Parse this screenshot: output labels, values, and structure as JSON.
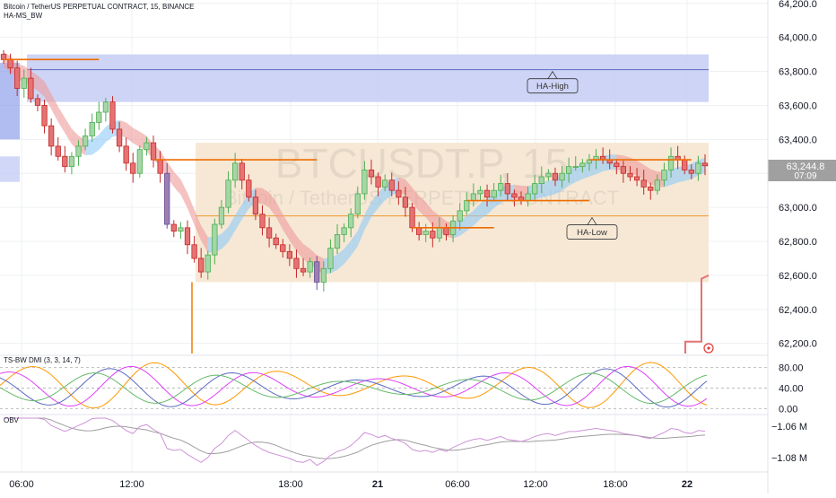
{
  "header": {
    "title": "Bitcoin / TetherUS PERPETUAL CONTRACT, 15, BINANCE",
    "indicator": "HA-MS_BW"
  },
  "watermark": {
    "symbol": "BTCUSDT.P, 15",
    "name": "Bitcoin / TetherUS PERPETUAL CONTRACT"
  },
  "colors": {
    "up_candle": "#a5d6a7",
    "down_candle": "#e57373",
    "purple_candle": "#9c7fb3",
    "orange_line": "#ef6c00",
    "high_zone": "#c5cdf5",
    "low_zone": "#f5e6d0",
    "grid": "#eef0f3",
    "price_tag": "#a0a0a0"
  },
  "chart_data": [
    {
      "type": "candlestick",
      "name": "main",
      "price_axis": [
        "64,200.0",
        "64,000.0",
        "63,800.0",
        "63,600.0",
        "63,400.0",
        "63,200.0",
        "63,000.0",
        "62,800.0",
        "62,600.0",
        "62,400.0",
        "62,200.0"
      ],
      "ylim": [
        62140,
        64220
      ],
      "time_axis": [
        "06:00",
        "12:00",
        "18:00",
        "21",
        "06:00",
        "12:00",
        "18:00",
        "22"
      ],
      "current_price": "63,244.8",
      "countdown": "07:09",
      "zones": [
        {
          "label": "HA-High",
          "top": 63900,
          "bottom": 63620,
          "level": 63810
        },
        {
          "label": "HA-Low",
          "top": 63380,
          "bottom": 62560,
          "level": 62950
        }
      ],
      "close": [
        63870,
        63820,
        63700,
        63760,
        63640,
        63600,
        63480,
        63360,
        63300,
        63240,
        63300,
        63360,
        63420,
        63500,
        63560,
        63620,
        63460,
        63360,
        63260,
        63200,
        63340,
        63380,
        63280,
        63200,
        62900,
        62860,
        62880,
        62780,
        62700,
        62620,
        62720,
        62900,
        63000,
        63160,
        63260,
        63160,
        63060,
        62960,
        62880,
        62820,
        62780,
        62740,
        62700,
        62640,
        62620,
        62680,
        62560,
        62640,
        62760,
        62840,
        62880,
        62960,
        63080,
        63220,
        63180,
        63120,
        63160,
        63100,
        63060,
        63000,
        62880,
        62840,
        62860,
        62820,
        62880,
        62840,
        62920,
        62980,
        63040,
        63080,
        63100,
        63060,
        63100,
        63140,
        63080,
        63060,
        63040,
        63080,
        63140,
        63180,
        63200,
        63160,
        63200,
        63240,
        63240,
        63260,
        63280,
        63300,
        63280,
        63260,
        63240,
        63200,
        63180,
        63160,
        63120,
        63100,
        63160,
        63220,
        63300,
        63280,
        63220,
        63200,
        63260,
        63244.8
      ]
    },
    {
      "type": "line",
      "name": "TS-BW DMI (3, 3, 14, 7)",
      "levels": [
        "80.00",
        "40.00",
        "0.00"
      ],
      "ylim": [
        -8,
        100
      ]
    },
    {
      "type": "line",
      "name": "OBV",
      "levels": [
        "−1.06 M",
        "−1.08 M"
      ]
    }
  ]
}
